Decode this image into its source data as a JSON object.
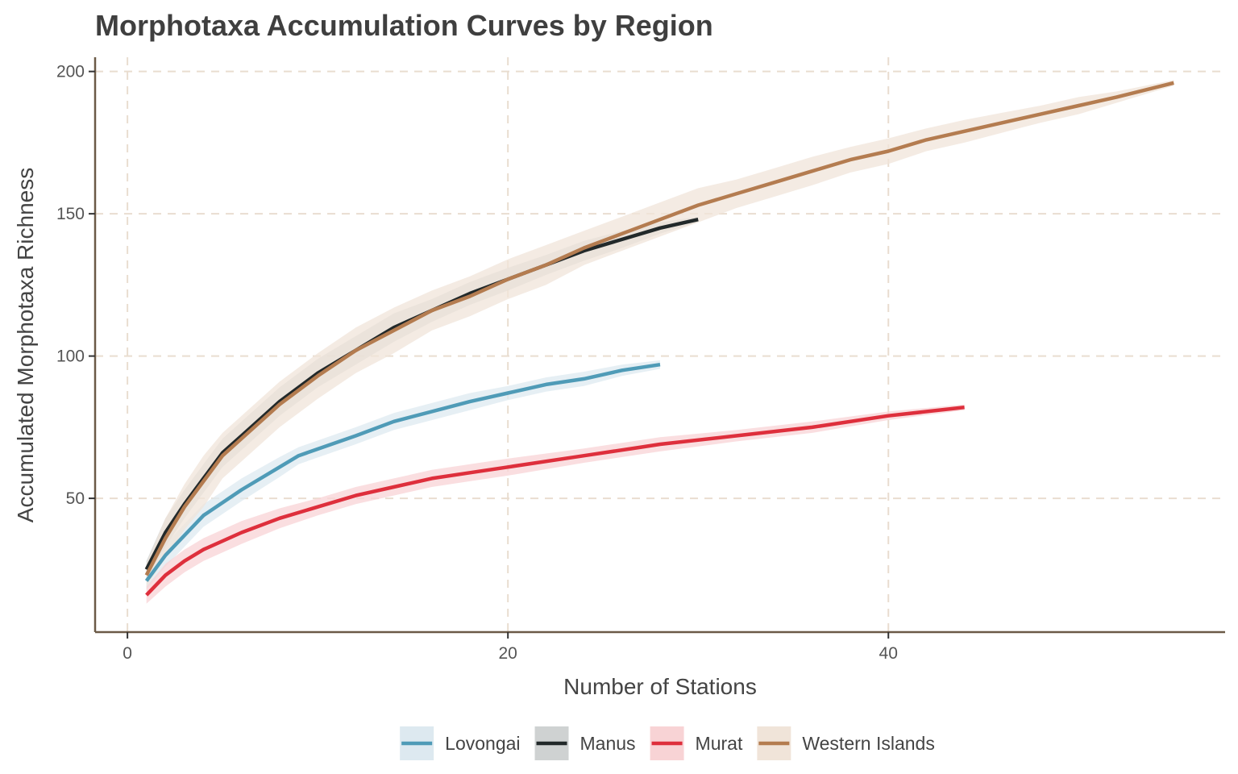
{
  "chart_data": {
    "type": "line",
    "title": "Morphotaxa Accumulation Curves by Region",
    "xlabel": "Number of Stations",
    "ylabel": "Accumulated Morphotaxa Richness",
    "xlim": [
      -1.7,
      57.7
    ],
    "ylim": [
      3,
      205
    ],
    "xticks": [
      0,
      20,
      40
    ],
    "yticks": [
      50,
      100,
      150,
      200
    ],
    "grid": true,
    "legend_position": "bottom",
    "series": [
      {
        "name": "Lovongai",
        "color": "#4f9bb7",
        "band_color": "#dde9f0",
        "x": [
          1,
          2,
          3,
          4,
          6,
          8,
          9,
          12,
          14,
          18,
          20,
          22,
          24,
          26,
          28
        ],
        "y": [
          21,
          30,
          37,
          44,
          53,
          61,
          65,
          72,
          77,
          84,
          87,
          90,
          92,
          95,
          97
        ],
        "band": [
          3,
          4,
          4,
          4,
          4,
          3.5,
          3,
          3,
          3,
          3,
          2.5,
          2.5,
          2.5,
          2,
          1.5
        ]
      },
      {
        "name": "Manus",
        "color": "#22292a",
        "band_color": "#cfd2d2",
        "x": [
          1,
          2,
          3,
          4,
          5,
          6,
          8,
          10,
          12,
          14,
          16,
          18,
          20,
          22,
          24,
          26,
          28,
          30
        ],
        "y": [
          25,
          38,
          48,
          57,
          66,
          72,
          84,
          94,
          102,
          110,
          116,
          122,
          127,
          132,
          137,
          141,
          145,
          148
        ],
        "band": [
          3,
          5,
          5,
          5,
          5,
          5,
          5,
          5,
          5,
          5,
          4,
          4,
          4,
          3.5,
          3.5,
          3,
          2,
          1
        ]
      },
      {
        "name": "Murat",
        "color": "#de2f3c",
        "band_color": "#f8d3d5",
        "x": [
          1,
          2,
          3,
          4,
          6,
          8,
          10,
          12,
          14,
          16,
          18,
          20,
          24,
          27,
          28,
          32,
          36,
          40,
          44
        ],
        "y": [
          16,
          23,
          28,
          32,
          38,
          43,
          47,
          51,
          54,
          57,
          59,
          61,
          65,
          68,
          69,
          72,
          75,
          79,
          82
        ],
        "band": [
          3,
          4,
          4,
          4,
          4,
          3.5,
          3,
          3,
          3,
          3,
          3,
          3,
          2.5,
          2.5,
          2.5,
          2,
          2,
          1.5,
          1
        ]
      },
      {
        "name": "Western Islands",
        "color": "#b47c50",
        "band_color": "#f0e4d9",
        "x": [
          1,
          2,
          3,
          4,
          5,
          6,
          8,
          10,
          12,
          14,
          16,
          18,
          20,
          22,
          24,
          26,
          28,
          30,
          32,
          34,
          36,
          38,
          40,
          42,
          44,
          46,
          48,
          50,
          52,
          55
        ],
        "y": [
          23,
          36,
          47,
          56,
          65,
          71,
          83,
          93,
          102,
          109,
          116,
          121,
          127,
          132,
          138,
          143,
          148,
          153,
          157,
          161,
          165,
          169,
          172,
          176,
          179,
          182,
          185,
          188,
          191,
          196
        ],
        "band": [
          4,
          7,
          8,
          9,
          8,
          8,
          8,
          8,
          8,
          8,
          7,
          7,
          7,
          7,
          6,
          6,
          6,
          6,
          5,
          5,
          5,
          4.5,
          4.5,
          4,
          4,
          3.5,
          3,
          3,
          2,
          1
        ]
      }
    ]
  }
}
